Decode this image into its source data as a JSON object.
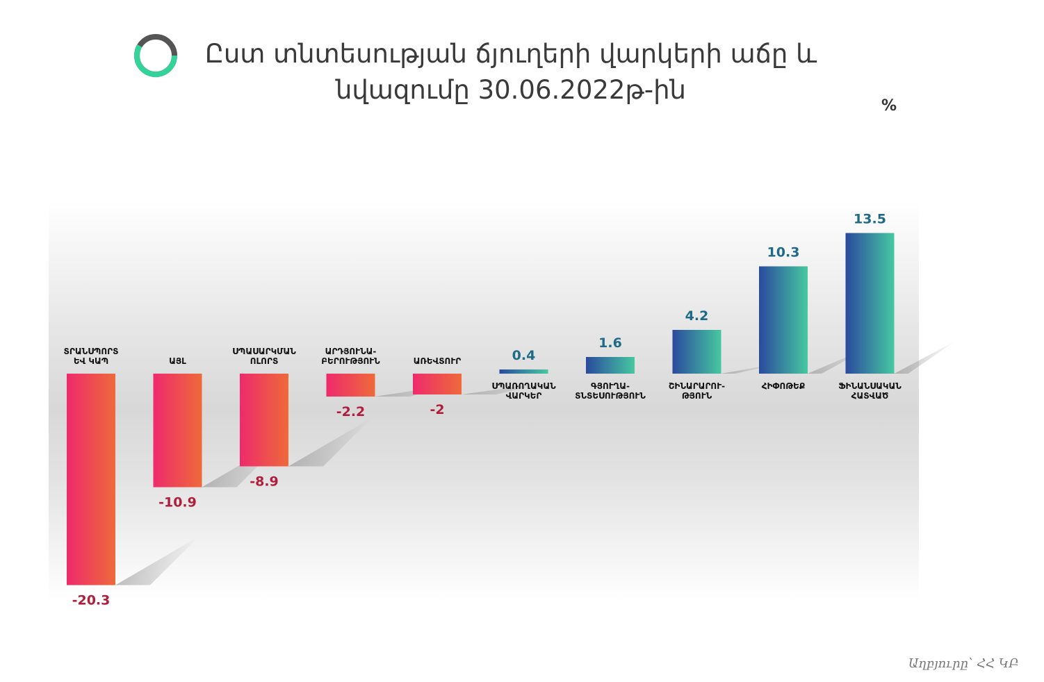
{
  "title": {
    "line1": "Ըստ տնտեսության ճյուղերի վարկերի աճը և",
    "line2": "նվազումը 30.06.2022թ-ին"
  },
  "unit": "%",
  "source": "Աղբյուրը՝ ՀՀ ԿԲ",
  "colors": {
    "negative_start": "#ee2a6c",
    "negative_end": "#ee6a3a",
    "positive_start": "#2b4a9e",
    "positive_end": "#46c8a0",
    "negative_text": "#b01e3c",
    "positive_text": "#1e6a88",
    "ring_dark": "#555555",
    "ring_green": "#35d39a"
  },
  "chart_data": {
    "type": "bar",
    "categories": [
      [
        "ՏՐԱՆՍՊՈՐՏ",
        "ԵՎ ԿԱՊ"
      ],
      [
        "ԱՅԼ"
      ],
      [
        "ՍՊԱՍԱՐԿՄԱՆ",
        "ՈԼՈՐՏ"
      ],
      [
        "ԱՐԴՅՈՒՆԱ-",
        "ԲԵՐՈՒԹՅՈՒՆ"
      ],
      [
        "ԱՌԵՎՏՈՒՐ"
      ],
      [
        "ՍՊԱՌՈՂԱԿԱՆ",
        "ՎԱՐԿԵՐ"
      ],
      [
        "ԳՅՈՒՂԱ-",
        "ՏՆՏԵՍՈՒԹՅՈՒՆ"
      ],
      [
        "ՇԻՆԱՐԱՐՈՒ-",
        "ԹՅՈՒՆ"
      ],
      [
        "ՀԻՓՈԹԵՔ"
      ],
      [
        "ՖԻՆԱՆՍԱԿԱՆ",
        "ՀԱՏՎԱԾ"
      ]
    ],
    "values": [
      -20.3,
      -10.9,
      -8.9,
      -2.2,
      -2,
      0.4,
      1.6,
      4.2,
      10.3,
      13.5
    ],
    "value_labels": [
      "-20.3",
      "-10.9",
      "-8.9",
      "-2.2",
      "-2",
      "0.4",
      "1.6",
      "4.2",
      "10.3",
      "13.5"
    ],
    "title": "Ըստ տնտեսության ճյուղերի վարկերի աճը և նվազումը 30.06.2022թ-ին",
    "ylabel": "%",
    "grid": false,
    "legend": "none"
  }
}
